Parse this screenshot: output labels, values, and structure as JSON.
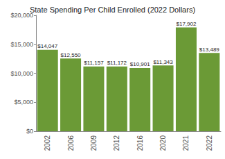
{
  "chart_data": {
    "type": "bar",
    "title": "State Spending Per Child Enrolled (2022 Dollars)",
    "categories": [
      "2002",
      "2006",
      "2009",
      "2012",
      "2016",
      "2020",
      "2021",
      "2022"
    ],
    "values": [
      14047,
      12550,
      11157,
      11172,
      10901,
      11343,
      17902,
      13489
    ],
    "value_labels": [
      "$14,047",
      "$12,550",
      "$11,157",
      "$11,172",
      "$10,901",
      "$11,343",
      "$17,902",
      "$13,489"
    ],
    "data_labels": true,
    "color": "#6b9a36",
    "ylim": [
      0,
      20000
    ],
    "yticks": [
      {
        "value": 0,
        "label": "$0"
      },
      {
        "value": 5000,
        "label": "$5,000"
      },
      {
        "value": 10000,
        "label": "$10,000"
      },
      {
        "value": 15000,
        "label": "$15,000"
      },
      {
        "value": 20000,
        "label": "$20,000"
      }
    ],
    "grid": false
  }
}
